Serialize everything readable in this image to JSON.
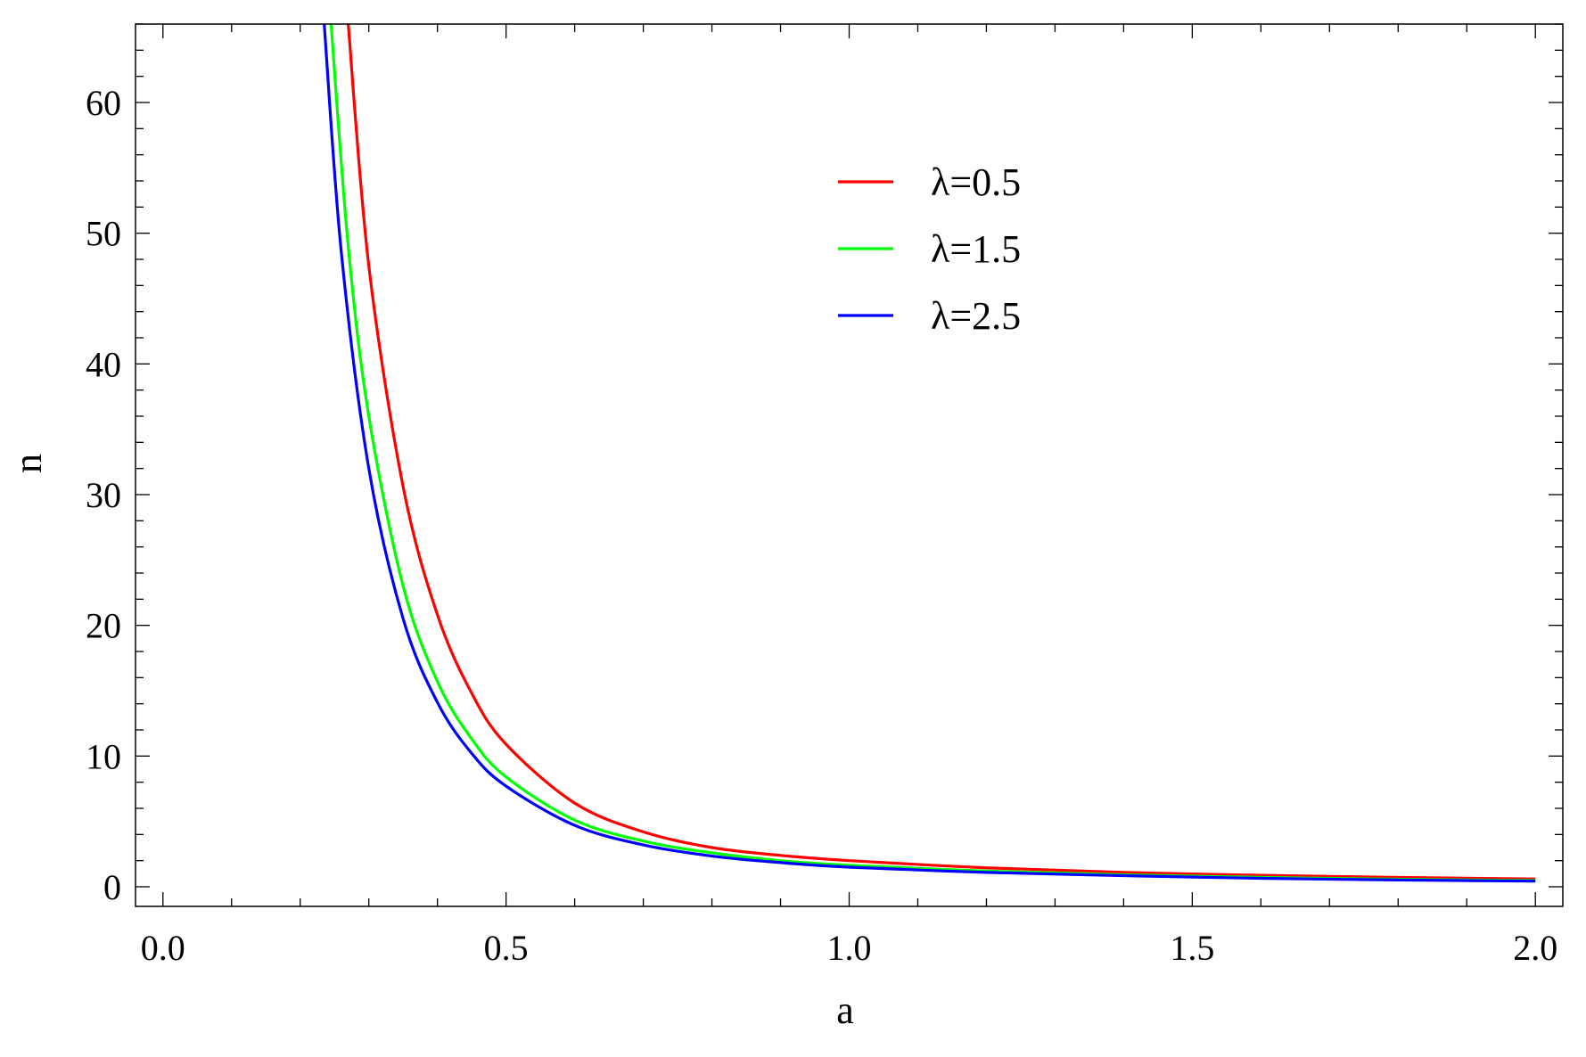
{
  "chart_data": {
    "type": "line",
    "xlabel": "a",
    "ylabel": "n",
    "xlim": [
      -0.04,
      2.04
    ],
    "ylim": [
      -1.5,
      66
    ],
    "grid": false,
    "legend_position": "upper-center",
    "x_ticks": [
      0.0,
      0.5,
      1.0,
      1.5,
      2.0
    ],
    "x_tick_labels": [
      "0.0",
      "0.5",
      "1.0",
      "1.5",
      "2.0"
    ],
    "x_minor_step": 0.1,
    "y_ticks": [
      0,
      10,
      20,
      30,
      40,
      50,
      60
    ],
    "y_tick_labels": [
      "0",
      "10",
      "20",
      "30",
      "40",
      "50",
      "60"
    ],
    "y_minor_step": 2,
    "series": [
      {
        "name": "λ=0.5",
        "color": "#ff0000",
        "x": [
          0.27,
          0.3,
          0.35,
          0.4,
          0.45,
          0.5,
          0.6,
          0.7,
          0.8,
          0.9,
          1.0,
          1.2,
          1.4,
          1.6,
          1.8,
          2.0
        ],
        "y": [
          66,
          47.5,
          30.6,
          20.8,
          14.8,
          10.9,
          6.4,
          4.2,
          3.0,
          2.4,
          2.0,
          1.45,
          1.1,
          0.88,
          0.72,
          0.6
        ]
      },
      {
        "name": "λ=1.5",
        "color": "#00ff00",
        "x": [
          0.245,
          0.27,
          0.3,
          0.35,
          0.4,
          0.45,
          0.5,
          0.6,
          0.7,
          0.8,
          0.9,
          1.0,
          1.2,
          1.4,
          1.6,
          1.8,
          2.0
        ],
        "y": [
          66,
          49.0,
          36.0,
          23.0,
          15.7,
          11.3,
          8.4,
          5.1,
          3.5,
          2.6,
          2.0,
          1.65,
          1.2,
          0.92,
          0.72,
          0.58,
          0.48
        ]
      },
      {
        "name": "λ=2.5",
        "color": "#0000ff",
        "x": [
          0.235,
          0.26,
          0.3,
          0.35,
          0.4,
          0.45,
          0.5,
          0.6,
          0.7,
          0.8,
          0.9,
          1.0,
          1.2,
          1.4,
          1.6,
          1.8,
          2.0
        ],
        "y": [
          66,
          48.5,
          32.0,
          20.5,
          14.1,
          10.2,
          7.7,
          4.7,
          3.2,
          2.35,
          1.85,
          1.5,
          1.1,
          0.85,
          0.65,
          0.52,
          0.43
        ]
      }
    ]
  }
}
